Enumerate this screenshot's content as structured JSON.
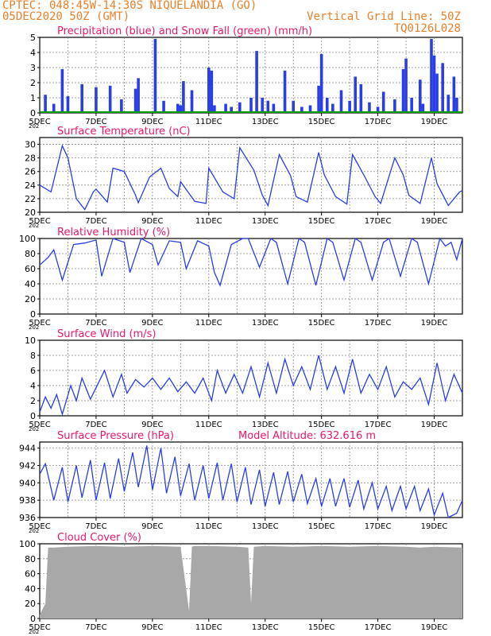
{
  "header": {
    "location": "CPTEC:  048:45W-14:30S  NIQUELANDIA (GO)",
    "run": "05DEC2020 50Z (GMT)",
    "grid_note": "Vertical Grid Line: 50Z",
    "code": "TQ0126L028"
  },
  "colors": {
    "series": "#2a3ee6",
    "snow": "#00a000",
    "title": "#e8186c",
    "header": "#e8802a",
    "cloud": "#a8a8a8",
    "grid": "#888888"
  },
  "x_axis": {
    "labels": [
      "5DEC",
      "7DEC",
      "9DEC",
      "11DEC",
      "13DEC",
      "15DEC",
      "17DEC",
      "19DEC"
    ],
    "label_days": [
      0,
      2,
      4,
      6,
      8,
      10,
      12,
      14
    ],
    "range_days": [
      0,
      15
    ],
    "year_fragment": "202"
  },
  "chart_data": [
    {
      "type": "bar",
      "title": "Precipitation (blue) and Snow Fall (green) (mm/h)",
      "ylim": [
        0,
        5
      ],
      "yticks": [
        0,
        1,
        2,
        3,
        4,
        5
      ],
      "series": [
        {
          "name": "Precipitation",
          "days": [
            0.2,
            0.5,
            0.8,
            1.0,
            1.5,
            2.0,
            2.5,
            2.9,
            3.4,
            3.5,
            4.1,
            4.4,
            4.9,
            5.0,
            5.1,
            5.4,
            6.0,
            6.1,
            6.2,
            6.6,
            6.8,
            7.1,
            7.5,
            7.7,
            7.9,
            8.1,
            8.3,
            8.7,
            9.0,
            9.3,
            9.6,
            9.9,
            10.0,
            10.2,
            10.4,
            10.7,
            11.0,
            11.2,
            11.4,
            11.7,
            12.0,
            12.2,
            12.6,
            12.9,
            13.0,
            13.2,
            13.5,
            13.6,
            13.9,
            14.0,
            14.1,
            14.3,
            14.5,
            14.7,
            14.8
          ],
          "values": [
            1.2,
            0.6,
            2.9,
            1.1,
            1.9,
            1.7,
            1.8,
            0.9,
            1.6,
            2.3,
            4.9,
            0.8,
            0.6,
            0.5,
            2.1,
            1.5,
            3.0,
            2.8,
            0.5,
            0.6,
            0.4,
            0.7,
            1.0,
            4.1,
            1.0,
            0.8,
            0.6,
            2.8,
            0.8,
            0.4,
            0.5,
            1.8,
            3.9,
            1.0,
            0.6,
            1.5,
            0.8,
            2.4,
            1.9,
            0.7,
            0.4,
            1.4,
            0.9,
            2.9,
            3.6,
            1.0,
            2.2,
            0.6,
            4.9,
            3.8,
            2.6,
            3.3,
            1.2,
            2.4,
            1.0
          ]
        },
        {
          "name": "Snow Fall",
          "days": [
            0,
            15
          ],
          "values": [
            0,
            0
          ]
        }
      ]
    },
    {
      "type": "line",
      "title": "Surface Temperature (nC)",
      "ylim": [
        20,
        31
      ],
      "yticks": [
        20,
        22,
        24,
        26,
        28,
        30
      ],
      "series": [
        {
          "name": "Temperature",
          "days": [
            0,
            0.4,
            0.8,
            1.0,
            1.3,
            1.6,
            1.9,
            2.0,
            2.4,
            2.6,
            3.0,
            3.4,
            3.5,
            3.9,
            4.3,
            4.6,
            4.9,
            5.0,
            5.5,
            5.9,
            6.0,
            6.5,
            6.9,
            7.1,
            7.6,
            7.9,
            8.1,
            8.5,
            8.9,
            9.1,
            9.5,
            9.9,
            10.1,
            10.5,
            10.9,
            11.1,
            11.5,
            11.9,
            12.1,
            12.6,
            12.9,
            13.1,
            13.5,
            13.9,
            14.1,
            14.5,
            14.9,
            15.0
          ],
          "values": [
            24.0,
            23.0,
            29.8,
            28.0,
            22.0,
            20.4,
            23.0,
            23.4,
            21.5,
            26.5,
            26.0,
            22.5,
            21.4,
            25.2,
            26.5,
            23.5,
            22.3,
            24.5,
            21.6,
            21.3,
            26.5,
            23.0,
            22.0,
            29.5,
            26.2,
            22.5,
            21.0,
            28.5,
            25.4,
            22.3,
            21.5,
            28.8,
            25.5,
            22.3,
            21.2,
            28.5,
            25.5,
            22.3,
            21.3,
            28.0,
            25.5,
            22.5,
            21.3,
            28.0,
            24.2,
            21.0,
            23.0,
            23.2
          ]
        }
      ]
    },
    {
      "type": "line",
      "title": "Relative Humidity (%)",
      "ylim": [
        0,
        100
      ],
      "yticks": [
        0,
        20,
        40,
        60,
        80,
        100
      ],
      "series": [
        {
          "name": "Humidity",
          "days": [
            0,
            0.3,
            0.5,
            0.8,
            1.2,
            1.6,
            2.0,
            2.2,
            2.6,
            3.0,
            3.2,
            3.6,
            4.0,
            4.2,
            4.6,
            5.0,
            5.2,
            5.6,
            6.0,
            6.2,
            6.4,
            6.8,
            7.2,
            7.4,
            7.8,
            8.2,
            8.4,
            8.8,
            9.2,
            9.4,
            9.8,
            10.2,
            10.4,
            10.8,
            11.2,
            11.4,
            11.8,
            12.2,
            12.4,
            12.8,
            13.2,
            13.4,
            13.8,
            14.2,
            14.4,
            14.6,
            14.8,
            15.0
          ],
          "values": [
            65,
            75,
            85,
            45,
            92,
            94,
            98,
            50,
            100,
            95,
            55,
            100,
            92,
            65,
            97,
            95,
            60,
            97,
            90,
            55,
            38,
            92,
            100,
            100,
            62,
            100,
            95,
            40,
            100,
            95,
            38,
            100,
            95,
            45,
            100,
            95,
            45,
            95,
            100,
            50,
            100,
            95,
            40,
            100,
            90,
            95,
            72,
            100
          ]
        }
      ]
    },
    {
      "type": "line",
      "title": "Surface Wind (m/s)",
      "ylim": [
        0,
        10
      ],
      "yticks": [
        0,
        2,
        4,
        6,
        8,
        10
      ],
      "series": [
        {
          "name": "Wind speed",
          "days": [
            0,
            0.2,
            0.4,
            0.6,
            0.8,
            1.1,
            1.3,
            1.5,
            1.8,
            2.1,
            2.3,
            2.6,
            2.9,
            3.1,
            3.4,
            3.7,
            4.0,
            4.3,
            4.6,
            4.9,
            5.2,
            5.5,
            5.8,
            6.1,
            6.3,
            6.6,
            6.9,
            7.2,
            7.5,
            7.8,
            8.1,
            8.4,
            8.7,
            9.0,
            9.3,
            9.6,
            9.9,
            10.2,
            10.5,
            10.8,
            11.1,
            11.4,
            11.7,
            12.0,
            12.3,
            12.6,
            12.9,
            13.2,
            13.5,
            13.8,
            14.1,
            14.4,
            14.7,
            15.0
          ],
          "values": [
            0.5,
            2.5,
            1.0,
            2.8,
            0.2,
            4.0,
            2.0,
            5.0,
            2.2,
            4.5,
            6.0,
            2.5,
            5.5,
            3.0,
            4.8,
            3.8,
            5.0,
            3.5,
            5.0,
            3.2,
            4.5,
            3.0,
            5.0,
            2.0,
            6.0,
            3.0,
            5.5,
            3.0,
            6.5,
            2.5,
            7.0,
            3.0,
            7.5,
            4.0,
            6.5,
            3.5,
            8.0,
            3.5,
            6.5,
            3.0,
            7.5,
            3.0,
            5.5,
            3.5,
            6.5,
            2.5,
            4.5,
            3.5,
            5.0,
            1.5,
            7.0,
            2.0,
            5.5,
            3.0
          ]
        }
      ]
    },
    {
      "type": "line",
      "title": "Surface Pressure (hPa)",
      "annotation": "Model Altitude: 632.616 m",
      "ylim": [
        936,
        944.7
      ],
      "yticks": [
        936,
        938,
        940,
        942,
        944
      ],
      "series": [
        {
          "name": "Pressure",
          "days": [
            0,
            0.2,
            0.5,
            0.8,
            1.0,
            1.3,
            1.5,
            1.8,
            2.0,
            2.3,
            2.5,
            2.8,
            3.0,
            3.3,
            3.5,
            3.8,
            4.0,
            4.3,
            4.5,
            4.8,
            5.0,
            5.3,
            5.5,
            5.8,
            6.0,
            6.3,
            6.5,
            6.8,
            7.0,
            7.3,
            7.5,
            7.8,
            8.0,
            8.3,
            8.5,
            8.8,
            9.0,
            9.3,
            9.5,
            9.8,
            10.0,
            10.3,
            10.5,
            10.8,
            11.0,
            11.3,
            11.5,
            11.8,
            12.0,
            12.3,
            12.5,
            12.8,
            13.0,
            13.3,
            13.5,
            13.8,
            14.0,
            14.3,
            14.5,
            14.8,
            15.0
          ],
          "values": [
            941.0,
            942.2,
            938.0,
            941.8,
            937.8,
            942.0,
            938.3,
            942.6,
            938.0,
            942.3,
            938.2,
            942.8,
            939.0,
            943.5,
            939.5,
            944.3,
            939.2,
            944.0,
            938.8,
            943.0,
            938.5,
            942.2,
            938.0,
            942.0,
            938.2,
            942.3,
            938.0,
            942.2,
            937.8,
            941.8,
            937.5,
            941.5,
            937.3,
            941.2,
            937.5,
            941.3,
            937.8,
            941.0,
            937.6,
            940.5,
            937.3,
            940.5,
            937.3,
            940.5,
            937.2,
            940.3,
            937.0,
            940.0,
            937.0,
            939.6,
            936.8,
            939.6,
            937.0,
            939.6,
            936.8,
            939.3,
            936.3,
            938.8,
            936.0,
            936.5,
            938.0
          ]
        }
      ]
    },
    {
      "type": "area",
      "title": "Cloud Cover (%)",
      "ylim": [
        0,
        100
      ],
      "yticks": [
        0,
        20,
        40,
        60,
        80,
        100
      ],
      "series": [
        {
          "name": "Cloud cover",
          "days": [
            0,
            0.2,
            0.3,
            0.5,
            1.0,
            2.0,
            3.0,
            4.0,
            5.0,
            5.3,
            5.4,
            5.5,
            6.0,
            7.0,
            7.4,
            7.5,
            7.6,
            8.0,
            9.0,
            10.0,
            11.0,
            12.0,
            13.0,
            13.5,
            14.0,
            15.0
          ],
          "values": [
            5,
            20,
            95,
            95,
            96,
            97,
            96,
            97,
            96,
            10,
            96,
            97,
            97,
            96,
            95,
            20,
            96,
            97,
            96,
            97,
            96,
            97,
            96,
            95,
            96,
            95
          ]
        }
      ]
    }
  ]
}
